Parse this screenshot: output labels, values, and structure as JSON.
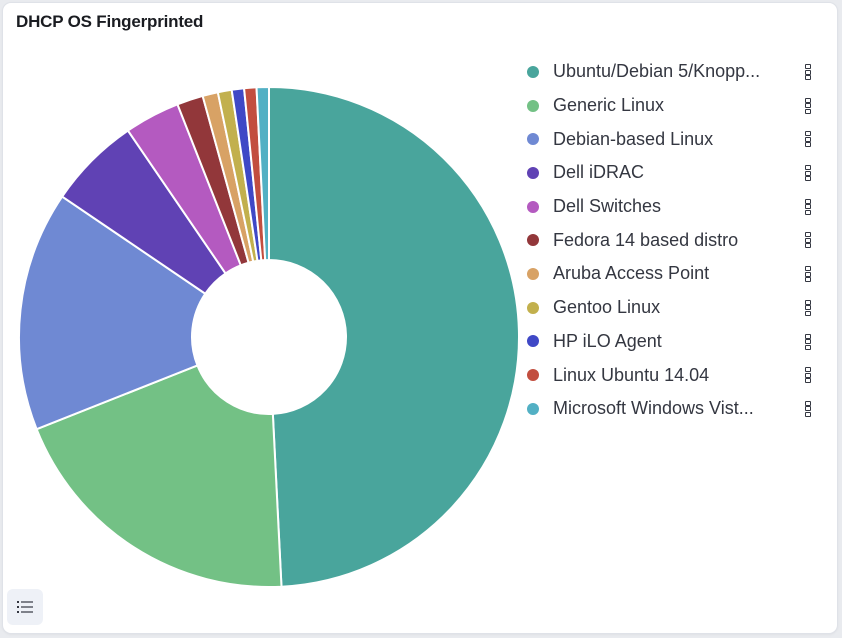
{
  "panel": {
    "title": "DHCP OS Fingerprinted"
  },
  "legend_toggle": {
    "icon": "list-icon"
  },
  "chart_data": {
    "type": "pie",
    "donut": true,
    "title": "DHCP OS Fingerprinted",
    "legend_position": "right",
    "slices": [
      {
        "label": "Ubuntu/Debian 5/Knopp...",
        "value": 49.5,
        "color": "#49a59c"
      },
      {
        "label": "Generic Linux",
        "value": 19.9,
        "color": "#73c185"
      },
      {
        "label": "Debian-based Linux",
        "value": 15.6,
        "color": "#6f89d3"
      },
      {
        "label": "Dell iDRAC",
        "value": 6.0,
        "color": "#6042b4"
      },
      {
        "label": "Dell Switches",
        "value": 3.6,
        "color": "#b45ac0"
      },
      {
        "label": "Fedora 14 based distro",
        "value": 1.7,
        "color": "#92373a"
      },
      {
        "label": "Aruba Access Point",
        "value": 1.0,
        "color": "#d8a265"
      },
      {
        "label": "Gentoo Linux",
        "value": 0.9,
        "color": "#c2b04d"
      },
      {
        "label": "HP iLO Agent",
        "value": 0.8,
        "color": "#3f48c6"
      },
      {
        "label": "Linux Ubuntu 14.04",
        "value": 0.8,
        "color": "#c24e3f"
      },
      {
        "label": "Microsoft Windows Vist...",
        "value": 0.8,
        "color": "#52b0c4"
      }
    ]
  }
}
